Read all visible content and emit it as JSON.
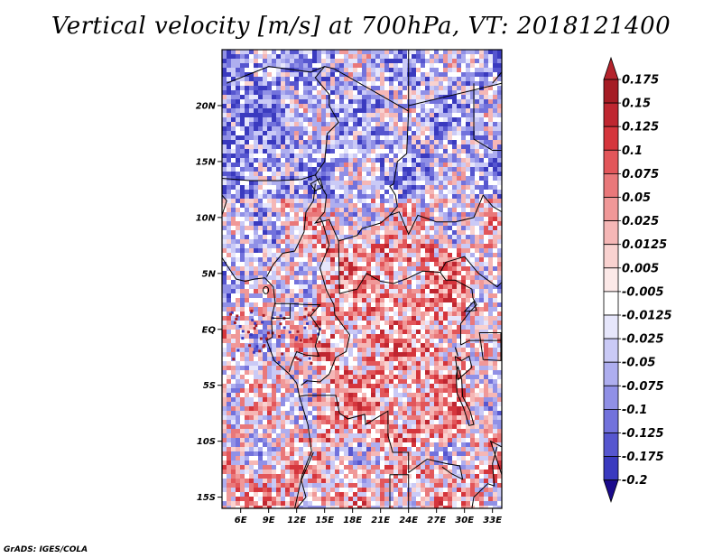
{
  "title": "Vertical velocity [m/s] at 700hPa, VT: 2018121400",
  "footer": "GrADS: IGES/COLA",
  "map": {
    "lon_range": [
      4,
      34
    ],
    "lat_range": [
      -16,
      25
    ],
    "lat_ticks": [
      {
        "value": 20,
        "label": "20N"
      },
      {
        "value": 15,
        "label": "15N"
      },
      {
        "value": 10,
        "label": "10N"
      },
      {
        "value": 5,
        "label": "5N"
      },
      {
        "value": 0,
        "label": "EQ"
      },
      {
        "value": -5,
        "label": "5S"
      },
      {
        "value": -10,
        "label": "10S"
      },
      {
        "value": -15,
        "label": "15S"
      }
    ],
    "lon_ticks": [
      {
        "value": 6,
        "label": "6E"
      },
      {
        "value": 9,
        "label": "9E"
      },
      {
        "value": 12,
        "label": "12E"
      },
      {
        "value": 15,
        "label": "15E"
      },
      {
        "value": 18,
        "label": "18E"
      },
      {
        "value": 21,
        "label": "21E"
      },
      {
        "value": 24,
        "label": "24E"
      },
      {
        "value": 27,
        "label": "27E"
      },
      {
        "value": 30,
        "label": "30E"
      },
      {
        "value": 33,
        "label": "33E"
      }
    ]
  },
  "colorbar": {
    "levels": [
      {
        "label": "0.175",
        "color": "#a51c24"
      },
      {
        "label": "0.15",
        "color": "#bf2630"
      },
      {
        "label": "0.125",
        "color": "#d5353c"
      },
      {
        "label": "0.1",
        "color": "#e2565a"
      },
      {
        "label": "0.075",
        "color": "#e9787a"
      },
      {
        "label": "0.05",
        "color": "#f09898"
      },
      {
        "label": "0.025",
        "color": "#f5b7b6"
      },
      {
        "label": "0.0125",
        "color": "#f9d2d0"
      },
      {
        "label": "0.005",
        "color": "#fce9e8"
      },
      {
        "label": "-0.005",
        "color": "#ffffff"
      },
      {
        "label": "-0.0125",
        "color": "#e6e6fb"
      },
      {
        "label": "-0.025",
        "color": "#cacaf6"
      },
      {
        "label": "-0.05",
        "color": "#aeaeef"
      },
      {
        "label": "-0.075",
        "color": "#9090e6"
      },
      {
        "label": "-0.1",
        "color": "#7272dc"
      },
      {
        "label": "-0.125",
        "color": "#5656cf"
      },
      {
        "label": "-0.175",
        "color": "#3a3abf"
      },
      {
        "label": "-0.2",
        "color": "#2222a6"
      }
    ],
    "top_arrow_color": "#b4232c",
    "bottom_arrow_color": "#1a0a8c"
  },
  "colors": {
    "frame": "#000000",
    "border": "#000000"
  }
}
